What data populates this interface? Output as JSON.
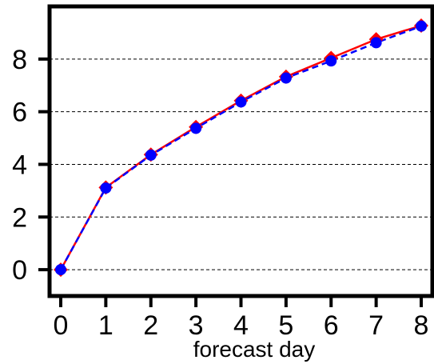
{
  "chart_data": {
    "type": "line",
    "xlabel": "forecast day",
    "ylabel": "",
    "title": "",
    "xlim": [
      0,
      8
    ],
    "ylim": [
      -1,
      10
    ],
    "x_ticks": [
      "0",
      "1",
      "2",
      "3",
      "4",
      "5",
      "6",
      "7",
      "8"
    ],
    "y_ticks": [
      "0",
      "2",
      "4",
      "6",
      "8"
    ],
    "grid": "horizontal dashed",
    "x": [
      0,
      1,
      2,
      3,
      4,
      5,
      6,
      7,
      8
    ],
    "series": [
      {
        "values": [
          0,
          3.12,
          4.37,
          5.42,
          6.42,
          7.33,
          8.04,
          8.75,
          9.27
        ],
        "color": "#ff0000",
        "line": "solid",
        "marker": "diamond"
      },
      {
        "values": [
          0,
          3.1,
          4.35,
          5.37,
          6.37,
          7.28,
          7.93,
          8.62,
          9.25
        ],
        "color": "#0000ff",
        "line": "dashed",
        "marker": "circle"
      }
    ]
  }
}
